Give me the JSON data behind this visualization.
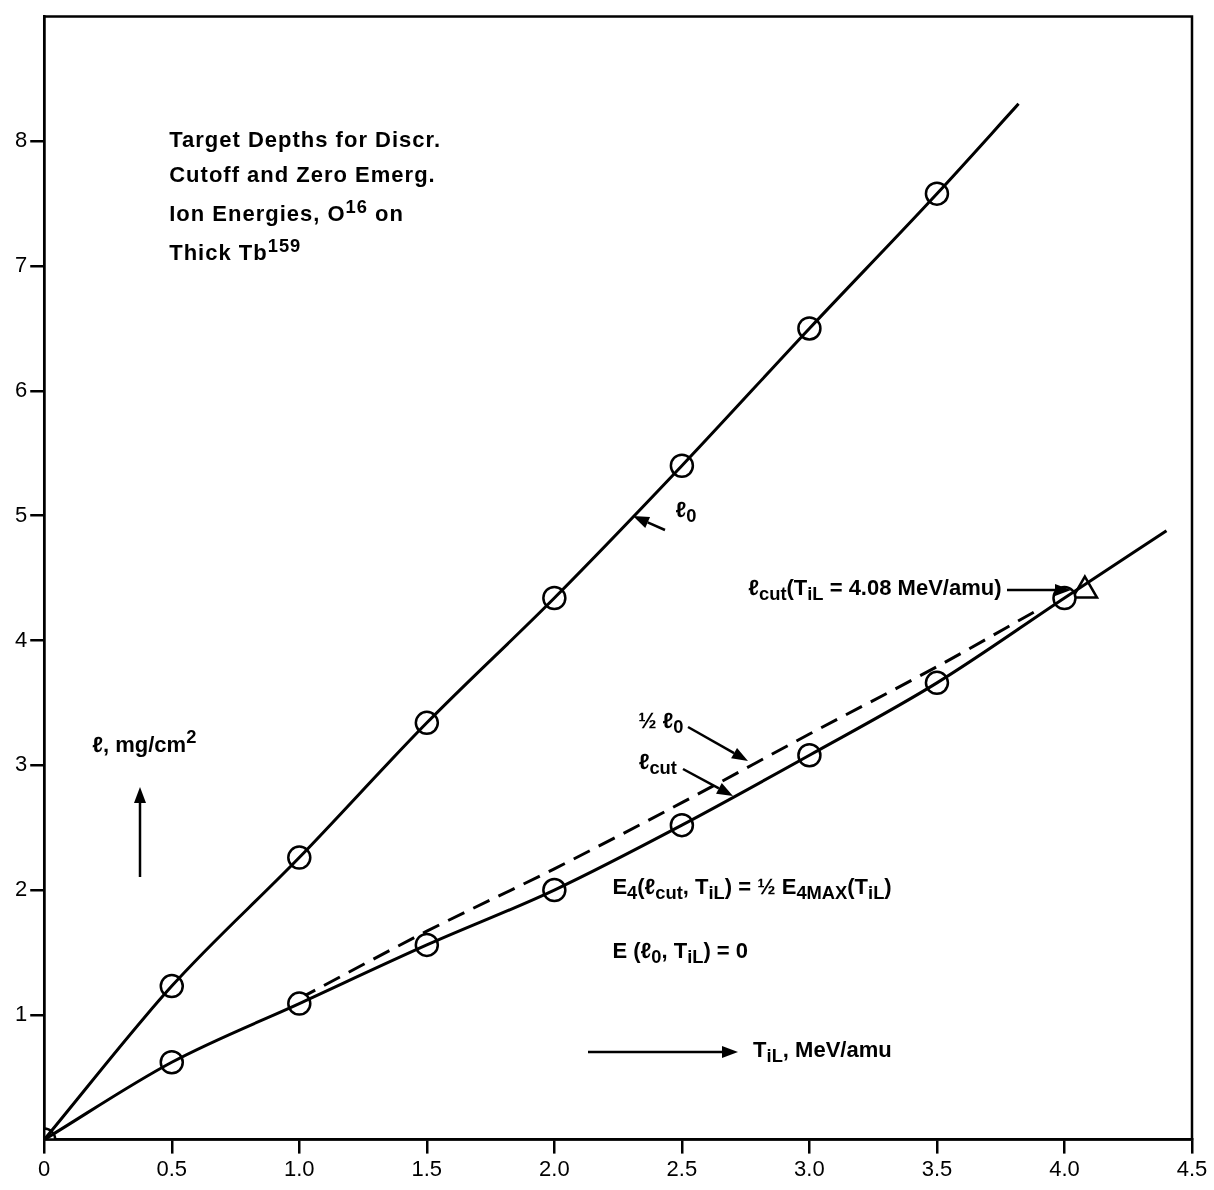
{
  "chart_data": {
    "type": "line",
    "title": "Target Depths for Discr.\nCutoff and Zero Emerg.\nIon Energies, O$^{16}$ on\nThick Tb$^{159}$",
    "xlabel": "T$_{iL}$, MeV/amu",
    "ylabel": "ℓ, mg/cm$^{2}$",
    "xlim": [
      0,
      4.5
    ],
    "ylim": [
      0,
      9
    ],
    "xticks": [
      0,
      {
        "value": 0.5,
        "label": "0.5"
      },
      {
        "value": 1,
        "label": "1.0"
      },
      {
        "value": 1.5,
        "label": "1.5"
      },
      {
        "value": 2,
        "label": "2.0"
      },
      {
        "value": 2.5,
        "label": "2.5"
      },
      {
        "value": 3,
        "label": "3.0"
      },
      {
        "value": 3.5,
        "label": "3.5"
      },
      {
        "value": 4,
        "label": "4.0"
      },
      {
        "value": 4.5,
        "label": "4.5"
      }
    ],
    "yticks": [
      1,
      2,
      3,
      4,
      5,
      6,
      7,
      8
    ],
    "grid": false,
    "legend": false,
    "series": [
      {
        "type": "line",
        "color": "#000000",
        "marker": "none",
        "line_style": "solid",
        "x": [
          0,
          0.5,
          1,
          1.5,
          2,
          2.5,
          3,
          3.5,
          3.82
        ],
        "values": [
          0,
          1.23,
          2.26,
          3.34,
          4.34,
          5.4,
          6.5,
          7.58,
          8.3
        ]
      },
      {
        "type": "scatter",
        "color": "#000000",
        "marker": "circle",
        "x": [
          0.5,
          1,
          1.5,
          2,
          2.5,
          3,
          3.5
        ],
        "values": [
          1.23,
          2.26,
          3.34,
          4.34,
          5.4,
          6.5,
          7.58
        ]
      },
      {
        "type": "line",
        "color": "#000000",
        "marker": "none",
        "line_style": "solid",
        "x": [
          0,
          0.5,
          1,
          1.5,
          2,
          2.5,
          3,
          3.5,
          4,
          4.4
        ],
        "values": [
          0,
          0.62,
          1.09,
          1.56,
          2.0,
          2.52,
          3.08,
          3.66,
          4.34,
          4.88
        ]
      },
      {
        "type": "scatter",
        "color": "#000000",
        "marker": "circle",
        "x": [
          0,
          0.5,
          1,
          1.5,
          2,
          2.5,
          3,
          3.5,
          4
        ],
        "values": [
          0,
          0.62,
          1.09,
          1.56,
          2.0,
          2.52,
          3.08,
          3.66,
          4.34
        ]
      },
      {
        "type": "line",
        "color": "#000000",
        "marker": "none",
        "line_style": "dashed",
        "x": [
          1,
          1.5,
          2,
          2.5,
          3,
          3.5,
          3.9
        ],
        "values": [
          1.13,
          1.67,
          2.17,
          2.7,
          3.25,
          3.79,
          4.25
        ]
      },
      {
        "type": "scatter",
        "color": "#000000",
        "marker": "triangle",
        "x": [
          4.08
        ],
        "values": [
          4.4
        ]
      }
    ],
    "annotations": [
      {
        "text": "ℓ$_{0}$",
        "x": 2.31,
        "y": 5.0
      },
      {
        "text": "ℓ$_{cut}$",
        "x": 2.7,
        "y": 2.75
      },
      "½ ℓ$_{0}$",
      "ℓ$_{cut}$(T$_{iL}$ = 4.08 MeV/amu)",
      "E$_{4}$(ℓ$_{cut}$, T$_{iL}$) = ½ E$_{4MAX}$(T$_{iL}$)",
      "E (ℓ$_{0}$, T$_{iL}$) = 0"
    ]
  }
}
